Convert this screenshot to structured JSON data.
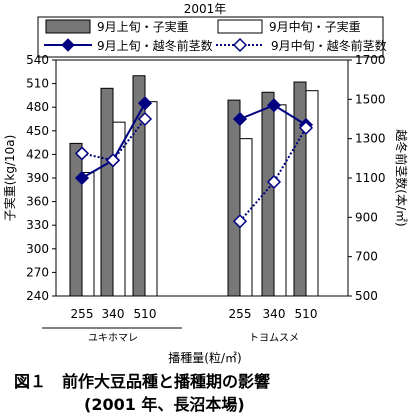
{
  "chart_data": {
    "type": "bar",
    "title": "2001年",
    "xlabel": "播種量(粒/㎡)",
    "ylabel_left": "子実重(kg/10a)",
    "ylabel_right": "越冬前茎数(本/㎡)",
    "ylim_left": [
      240,
      540
    ],
    "yticks_left": [
      240,
      270,
      300,
      330,
      360,
      390,
      420,
      450,
      480,
      510,
      540
    ],
    "ylim_right": [
      500,
      1700
    ],
    "yticks_right": [
      500,
      700,
      900,
      1100,
      1300,
      1500,
      1700
    ],
    "groups": [
      {
        "name": "ユキホマレ",
        "categories": [
          "255",
          "340",
          "510"
        ]
      },
      {
        "name": "トヨムスメ",
        "categories": [
          "255",
          "340",
          "510"
        ]
      }
    ],
    "series": [
      {
        "name": "9月上旬・子実重",
        "kind": "bar",
        "axis": "left",
        "color": "#777777",
        "values": [
          434,
          504,
          520,
          489,
          499,
          512
        ]
      },
      {
        "name": "9月中旬・子実重",
        "kind": "bar",
        "axis": "left",
        "color": "#ffffff",
        "values": [
          397,
          461,
          487,
          440,
          483,
          501
        ]
      },
      {
        "name": "9月上旬・越冬前茎数",
        "kind": "line",
        "axis": "right",
        "color": "#000080",
        "marker": "filled-diamond",
        "line_style": "solid",
        "values": [
          1100,
          1190,
          1480,
          1400,
          1470,
          1370
        ]
      },
      {
        "name": "9月中旬・越冬前茎数",
        "kind": "line",
        "axis": "right",
        "color": "#000080",
        "marker": "open-diamond",
        "line_style": "dotted",
        "values": [
          1225,
          1190,
          1400,
          880,
          1080,
          1355
        ]
      }
    ],
    "legend_position": "top",
    "grid": false
  },
  "figure_caption": {
    "line1": "図１　前作大豆品種と播種期の影響",
    "line2": "(2001 年、長沼本場)"
  }
}
